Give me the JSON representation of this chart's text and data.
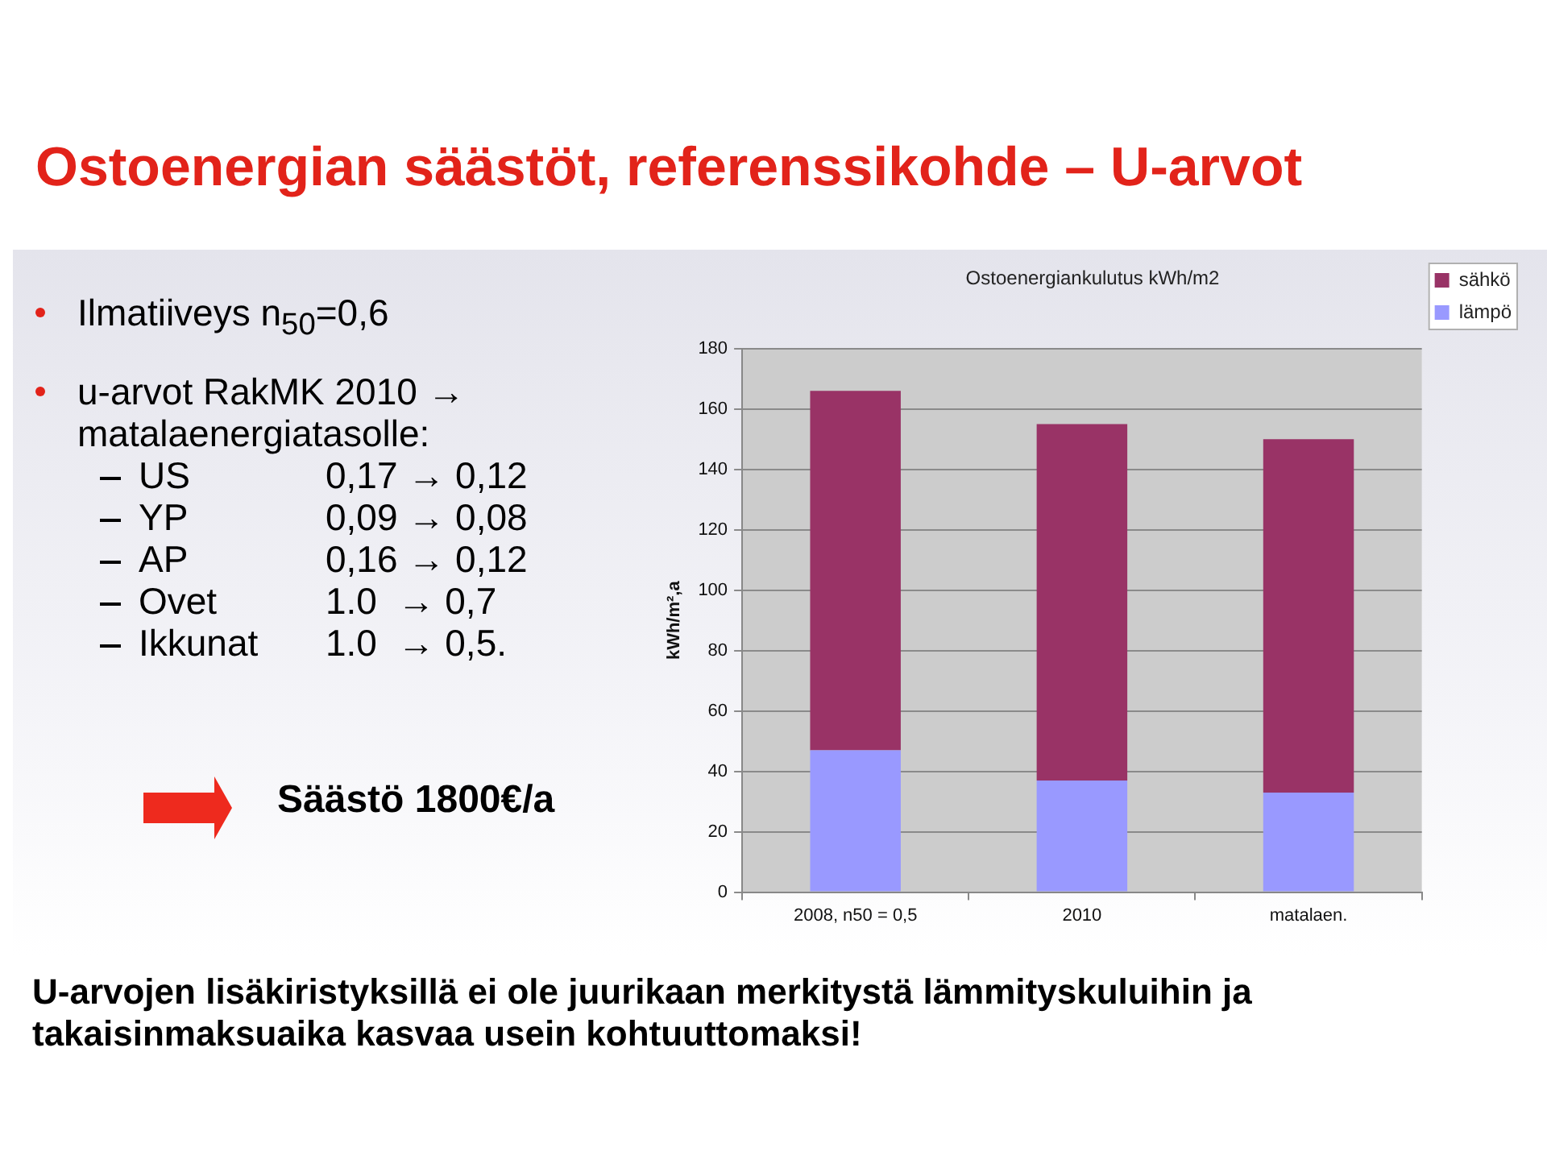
{
  "chart_data": {
    "type": "bar",
    "title": "Ostoenergian säästöt, referenssikohde – U-arvot",
    "subtitle": "Ostoenergiankulutus kWh/m2",
    "ylabel": "kWh/m²,a",
    "categories": [
      "2008, n50 = 0,5",
      "2010",
      "matalaen."
    ],
    "series": [
      {
        "name": "lämpö",
        "color": "#9999ff",
        "values": [
          47,
          37,
          33
        ]
      },
      {
        "name": "sähkö",
        "color": "#993366",
        "values": [
          119,
          118,
          117
        ]
      }
    ],
    "stacked": true,
    "ylim": [
      0,
      180
    ],
    "yticks": [
      0,
      20,
      40,
      60,
      80,
      100,
      120,
      140,
      160,
      180
    ],
    "grid": "y",
    "legend": "top right",
    "annotations": [
      "Ilmatiiveys n$_{50}$=0,6",
      "u-arvot RakMK 2010 → matalaenergiatasolle:",
      "US 0,17 → 0,12",
      "YP 0,09 → 0,08",
      "AP 0,16 → 0,12",
      "Ovet 1.0  → 0,7",
      "Ikkunat 1.0  → 0,5.",
      "Säästö 1800€/a",
      "U-arvojen lisäkiristyksillä ei ole juurikaan merkitystä lämmityskuluihin ja takaisinmaksuaika kasvaa usein kohtuuttomaksi!"
    ]
  }
}
